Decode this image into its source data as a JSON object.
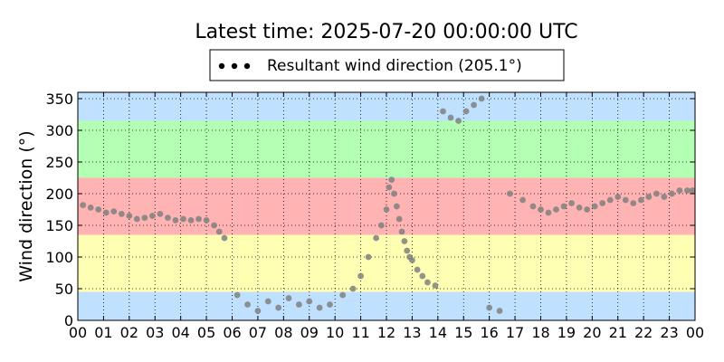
{
  "chart_data": {
    "type": "scatter",
    "title": "Latest time: 2025-07-20 00:00:00 UTC",
    "ylabel": "Wind direction (°)",
    "xlabel": "",
    "xlim": [
      0,
      24
    ],
    "ylim": [
      0,
      360
    ],
    "grid": true,
    "legend_placement": "top-center",
    "legend": "Resultant wind direction (205.1°)",
    "x_ticks": [
      "00",
      "01",
      "02",
      "03",
      "04",
      "05",
      "06",
      "07",
      "08",
      "09",
      "10",
      "11",
      "12",
      "13",
      "14",
      "15",
      "16",
      "17",
      "18",
      "19",
      "20",
      "21",
      "22",
      "23",
      "00"
    ],
    "y_ticks": [
      0,
      50,
      100,
      150,
      200,
      250,
      300,
      350
    ],
    "bands": [
      {
        "from": 0,
        "to": 45,
        "color": "#bfe0ff"
      },
      {
        "from": 45,
        "to": 135,
        "color": "#ffffb3"
      },
      {
        "from": 135,
        "to": 225,
        "color": "#ffb3b3"
      },
      {
        "from": 225,
        "to": 315,
        "color": "#b3ffb3"
      },
      {
        "from": 315,
        "to": 360,
        "color": "#bfe0ff"
      }
    ],
    "point_colors": {
      "resultant": "#111111",
      "other": "#808080"
    },
    "series": [
      {
        "name": "Resultant wind direction (205.1°)",
        "points": [
          [
            0.2,
            182
          ],
          [
            0.5,
            178
          ],
          [
            0.8,
            175
          ],
          [
            1.1,
            170
          ],
          [
            1.4,
            172
          ],
          [
            1.7,
            168
          ],
          [
            2.0,
            165
          ],
          [
            2.3,
            160
          ],
          [
            2.6,
            162
          ],
          [
            2.9,
            165
          ],
          [
            3.2,
            168
          ],
          [
            3.5,
            162
          ],
          [
            3.8,
            158
          ],
          [
            4.1,
            160
          ],
          [
            4.4,
            158
          ],
          [
            4.7,
            160
          ],
          [
            5.0,
            158
          ],
          [
            5.3,
            150
          ],
          [
            5.5,
            140
          ],
          [
            5.7,
            130
          ],
          [
            6.2,
            40
          ],
          [
            6.6,
            25
          ],
          [
            7.0,
            15
          ],
          [
            7.4,
            30
          ],
          [
            7.8,
            20
          ],
          [
            8.2,
            35
          ],
          [
            8.6,
            25
          ],
          [
            9.0,
            30
          ],
          [
            9.4,
            20
          ],
          [
            9.8,
            25
          ],
          [
            10.3,
            40
          ],
          [
            10.7,
            50
          ],
          [
            11.0,
            70
          ],
          [
            11.3,
            100
          ],
          [
            11.6,
            130
          ],
          [
            11.8,
            150
          ],
          [
            12.0,
            175
          ],
          [
            12.1,
            210
          ],
          [
            12.2,
            222
          ],
          [
            12.3,
            200
          ],
          [
            12.4,
            180
          ],
          [
            12.5,
            160
          ],
          [
            12.6,
            140
          ],
          [
            12.7,
            125
          ],
          [
            12.8,
            110
          ],
          [
            12.9,
            100
          ],
          [
            13.0,
            95
          ],
          [
            13.2,
            80
          ],
          [
            13.4,
            70
          ],
          [
            13.6,
            60
          ],
          [
            13.9,
            55
          ],
          [
            14.2,
            330
          ],
          [
            14.5,
            320
          ],
          [
            14.8,
            315
          ],
          [
            15.1,
            330
          ],
          [
            15.4,
            340
          ],
          [
            15.7,
            350
          ],
          [
            16.0,
            20
          ],
          [
            16.4,
            15
          ],
          [
            16.8,
            200
          ],
          [
            17.3,
            190
          ],
          [
            17.7,
            180
          ],
          [
            18.0,
            175
          ],
          [
            18.3,
            170
          ],
          [
            18.6,
            175
          ],
          [
            18.9,
            180
          ],
          [
            19.2,
            185
          ],
          [
            19.5,
            178
          ],
          [
            19.8,
            175
          ],
          [
            20.1,
            180
          ],
          [
            20.4,
            185
          ],
          [
            20.7,
            190
          ],
          [
            21.0,
            195
          ],
          [
            21.3,
            190
          ],
          [
            21.6,
            185
          ],
          [
            21.9,
            190
          ],
          [
            22.2,
            195
          ],
          [
            22.5,
            200
          ],
          [
            22.8,
            195
          ],
          [
            23.1,
            200
          ],
          [
            23.4,
            205
          ],
          [
            23.7,
            205
          ],
          [
            23.9,
            205
          ]
        ]
      }
    ]
  }
}
